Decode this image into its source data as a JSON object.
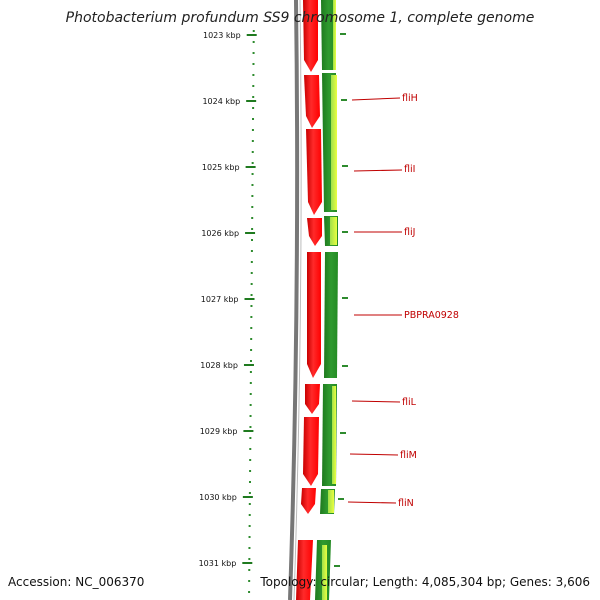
{
  "title": "Photobacterium profundum SS9 chromosome 1, complete genome",
  "accession": "Accession: NC_006370",
  "topology": "Topology: circular; Length: 4,085,304 bp; Genes: 3,606",
  "ticks": [
    "1023 kbp",
    "1024 kbp",
    "1025 kbp",
    "1026 kbp",
    "1027 kbp",
    "1028 kbp",
    "1029 kbp",
    "1030 kbp",
    "1031 kbp"
  ],
  "gene_labels": [
    "fliH",
    "fliI",
    "fliJ",
    "PBPRA0928",
    "fliL",
    "fliM",
    "fliN"
  ],
  "colors": {
    "forward_cds": "#ff0000",
    "gene_track": "#2e8b2e",
    "label": "#c00000",
    "backbone": "#777777"
  }
}
